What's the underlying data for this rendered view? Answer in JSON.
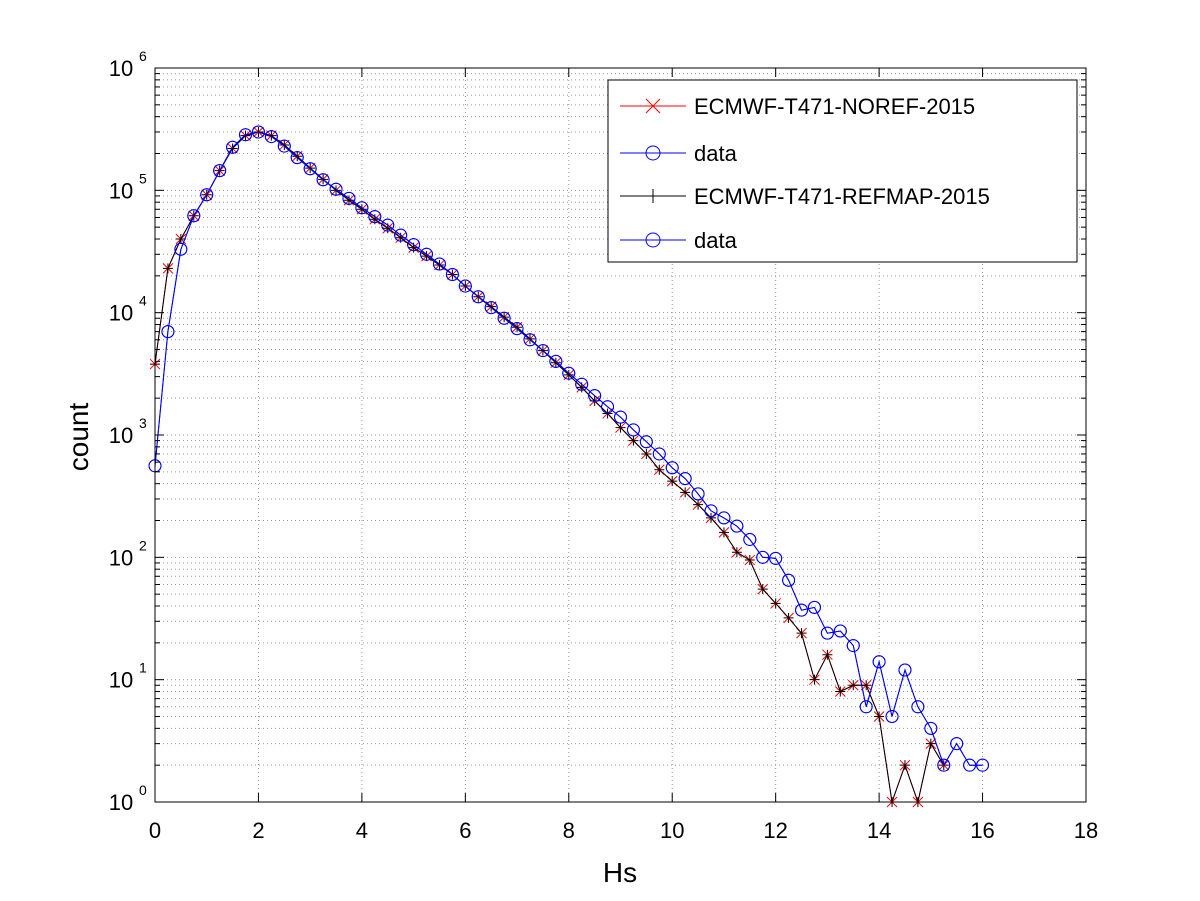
{
  "chart_data": {
    "type": "line",
    "xlabel": "Hs",
    "ylabel": "count",
    "xlim": [
      0,
      18
    ],
    "ylim": [
      1,
      1000000
    ],
    "yscale": "log",
    "grid": true,
    "legend_position": "top-right",
    "x_ticks": [
      "0",
      "2",
      "4",
      "6",
      "8",
      "10",
      "12",
      "14",
      "16",
      "18"
    ],
    "y_ticks": [
      {
        "base": "10",
        "exp": "0"
      },
      {
        "base": "10",
        "exp": "1"
      },
      {
        "base": "10",
        "exp": "2"
      },
      {
        "base": "10",
        "exp": "3"
      },
      {
        "base": "10",
        "exp": "4"
      },
      {
        "base": "10",
        "exp": "5"
      },
      {
        "base": "10",
        "exp": "6"
      }
    ],
    "series": [
      {
        "name": "ECMWF-T471-NOREF-2015",
        "color": "#ff0000",
        "marker": "x",
        "x": [
          0,
          0.25,
          0.5,
          0.75,
          1,
          1.25,
          1.5,
          1.75,
          2,
          2.25,
          2.5,
          2.75,
          3,
          3.25,
          3.5,
          3.75,
          4,
          4.25,
          4.5,
          4.75,
          5,
          5.25,
          5.5,
          5.75,
          6,
          6.25,
          6.5,
          6.75,
          7,
          7.25,
          7.5,
          7.75,
          8,
          8.25,
          8.5,
          8.75,
          9,
          9.25,
          9.5,
          9.75,
          10,
          10.25,
          10.5,
          10.75,
          11,
          11.25,
          11.5,
          11.75,
          12,
          12.25,
          12.5,
          12.75,
          13,
          13.25,
          13.5,
          13.75,
          14,
          14.25,
          14.5,
          14.75,
          15,
          15.25
        ],
        "y": [
          3800,
          23000,
          40000,
          62000,
          92000,
          145000,
          220000,
          280000,
          300000,
          280000,
          235000,
          190000,
          152000,
          123000,
          100000,
          83000,
          70000,
          58000,
          49000,
          41000,
          34000,
          29000,
          24500,
          20500,
          16500,
          13500,
          11200,
          9200,
          7600,
          6100,
          4900,
          3900,
          3100,
          2450,
          1900,
          1500,
          1150,
          900,
          700,
          520,
          420,
          340,
          270,
          210,
          160,
          110,
          95,
          55,
          42,
          32,
          24,
          10,
          16,
          8,
          9,
          9,
          5,
          1,
          2,
          1,
          3,
          2
        ]
      },
      {
        "name": "data",
        "color": "#0000ff",
        "marker": "o",
        "x": [
          0,
          0.25,
          0.5,
          0.75,
          1,
          1.25,
          1.5,
          1.75,
          2,
          2.25,
          2.5,
          2.75,
          3,
          3.25,
          3.5,
          3.75,
          4,
          4.25,
          4.5,
          4.75,
          5,
          5.25,
          5.5,
          5.75,
          6,
          6.25,
          6.5,
          6.75,
          7,
          7.25,
          7.5,
          7.75,
          8,
          8.25,
          8.5,
          8.75,
          9,
          9.25,
          9.5,
          9.75,
          10,
          10.25,
          10.5,
          10.75,
          11,
          11.25,
          11.5,
          11.75,
          12,
          12.25,
          12.5,
          12.75,
          13,
          13.25,
          13.5,
          13.75,
          14,
          14.25,
          14.5,
          14.75,
          15,
          15.25,
          15.5,
          15.75,
          16
        ],
        "y": [
          560,
          7000,
          33000,
          62000,
          92000,
          145000,
          225000,
          285000,
          300000,
          275000,
          230000,
          185000,
          150000,
          122000,
          102000,
          86000,
          72000,
          61000,
          52000,
          43000,
          36000,
          30000,
          25000,
          20500,
          16500,
          13500,
          11000,
          9000,
          7400,
          6000,
          4900,
          4000,
          3200,
          2600,
          2100,
          1700,
          1400,
          1100,
          880,
          700,
          540,
          440,
          330,
          240,
          210,
          180,
          140,
          100,
          98,
          65,
          37,
          39,
          24,
          25,
          19,
          6,
          14,
          5,
          12,
          6,
          4,
          2,
          3,
          2,
          2
        ]
      },
      {
        "name": "ECMWF-T471-REFMAP-2015",
        "color": "#000000",
        "marker": "+",
        "x": [
          0,
          0.25,
          0.5,
          0.75,
          1,
          1.25,
          1.5,
          1.75,
          2,
          2.25,
          2.5,
          2.75,
          3,
          3.25,
          3.5,
          3.75,
          4,
          4.25,
          4.5,
          4.75,
          5,
          5.25,
          5.5,
          5.75,
          6,
          6.25,
          6.5,
          6.75,
          7,
          7.25,
          7.5,
          7.75,
          8,
          8.25,
          8.5,
          8.75,
          9,
          9.25,
          9.5,
          9.75,
          10,
          10.25,
          10.5,
          10.75,
          11,
          11.25,
          11.5,
          11.75,
          12,
          12.25,
          12.5,
          12.75,
          13,
          13.25,
          13.5,
          13.75,
          14,
          14.25,
          14.5,
          14.75,
          15,
          15.25
        ],
        "y": [
          3800,
          23000,
          40000,
          62000,
          92000,
          145000,
          220000,
          280000,
          300000,
          280000,
          235000,
          190000,
          152000,
          123000,
          100000,
          83000,
          70000,
          58000,
          49000,
          41000,
          34000,
          29000,
          24500,
          20500,
          16500,
          13500,
          11200,
          9200,
          7600,
          6100,
          4900,
          3900,
          3100,
          2450,
          1900,
          1500,
          1150,
          900,
          700,
          520,
          420,
          340,
          270,
          210,
          160,
          110,
          95,
          55,
          42,
          32,
          24,
          10,
          16,
          8,
          9,
          9,
          5,
          1,
          2,
          1,
          3,
          2
        ]
      },
      {
        "name": "data",
        "color": "#0000ff",
        "marker": "o",
        "x": [
          0,
          0.25,
          0.5,
          0.75,
          1,
          1.25,
          1.5,
          1.75,
          2,
          2.25,
          2.5,
          2.75,
          3,
          3.25,
          3.5,
          3.75,
          4,
          4.25,
          4.5,
          4.75,
          5,
          5.25,
          5.5,
          5.75,
          6,
          6.25,
          6.5,
          6.75,
          7,
          7.25,
          7.5,
          7.75,
          8,
          8.25,
          8.5,
          8.75,
          9,
          9.25,
          9.5,
          9.75,
          10,
          10.25,
          10.5,
          10.75,
          11,
          11.25,
          11.5,
          11.75,
          12,
          12.25,
          12.5,
          12.75,
          13,
          13.25,
          13.5,
          13.75,
          14,
          14.25,
          14.5,
          14.75,
          15,
          15.25,
          15.5,
          15.75,
          16
        ],
        "y": [
          560,
          7000,
          33000,
          62000,
          92000,
          145000,
          225000,
          285000,
          300000,
          275000,
          230000,
          185000,
          150000,
          122000,
          102000,
          86000,
          72000,
          61000,
          52000,
          43000,
          36000,
          30000,
          25000,
          20500,
          16500,
          13500,
          11000,
          9000,
          7400,
          6000,
          4900,
          4000,
          3200,
          2600,
          2100,
          1700,
          1400,
          1100,
          880,
          700,
          540,
          440,
          330,
          240,
          210,
          180,
          140,
          100,
          98,
          65,
          37,
          39,
          24,
          25,
          19,
          6,
          14,
          5,
          12,
          6,
          4,
          2,
          3,
          2,
          2
        ]
      }
    ]
  }
}
